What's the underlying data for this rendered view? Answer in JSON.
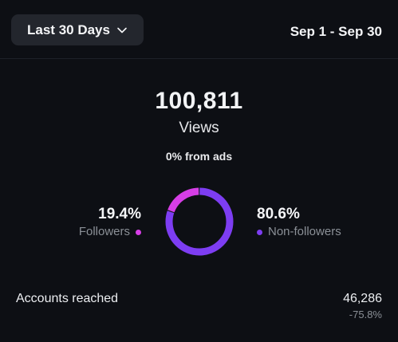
{
  "header": {
    "range_label": "Last 30 Days",
    "date_range": "Sep 1 - Sep 30"
  },
  "summary": {
    "views_total": "100,811",
    "views_label": "Views",
    "ads_note": "0% from ads"
  },
  "breakdown": {
    "followers": {
      "percent_text": "19.4%",
      "label": "Followers",
      "fraction": 0.194,
      "color": "#d63ee6"
    },
    "non_followers": {
      "percent_text": "80.6%",
      "label": "Non-followers",
      "fraction": 0.806,
      "color": "#7d3df2"
    }
  },
  "accounts_reached": {
    "label": "Accounts reached",
    "value": "46,286",
    "change": "-75.8%"
  },
  "icons": {
    "dropdown": "chevron-down-icon"
  }
}
